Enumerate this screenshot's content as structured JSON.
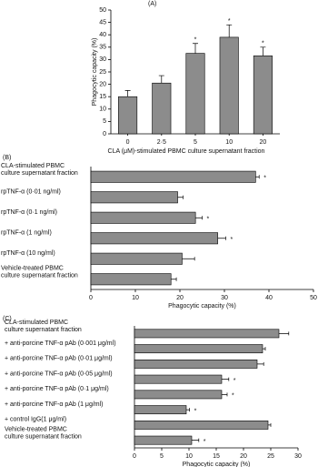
{
  "chart_data": [
    {
      "type": "bar",
      "orientation": "vertical",
      "panel_label": "(A)",
      "y_label": "Phagocytic capacity (%)",
      "x_label": "CLA (μM)-stimulated PBMC culture supernatant fraction",
      "categories": [
        "0",
        "2·5",
        "5",
        "10",
        "20"
      ],
      "series": [
        {
          "color": "#8c8c8c",
          "values": [
            15,
            20.5,
            32.5,
            39,
            31.5
          ],
          "errors": [
            2.5,
            3,
            4,
            5,
            3.5
          ]
        }
      ],
      "significant": [
        false,
        false,
        true,
        true,
        true
      ],
      "significance_label": "*",
      "ylim": [
        0,
        50
      ],
      "yticks": [
        0,
        5,
        10,
        15,
        20,
        25,
        30,
        35,
        40,
        45,
        50
      ]
    },
    {
      "type": "bar",
      "orientation": "horizontal",
      "panel_label": "(B)",
      "x_label": "Phagocytic capacity (%)",
      "categories": [
        [
          "CLA-stimulated PBMC",
          "culture supernatant fraction"
        ],
        "rpTNF-α (0·01 ng/ml)",
        "rpTNF-α (0·1 ng/ml)",
        "rpTNF-α (1 ng/ml)",
        "rpTNF-α (10 ng/ml)",
        [
          "Vehicle-treated PBMC",
          "culture supernatant fraction"
        ]
      ],
      "series": [
        {
          "color": "#8c8c8c",
          "values": [
            37,
            19.5,
            23.5,
            28.5,
            20.5,
            18
          ],
          "errors": [
            0.8,
            1.2,
            1.5,
            1.8,
            2.8,
            1.2
          ]
        }
      ],
      "significant": [
        true,
        false,
        true,
        true,
        false,
        false
      ],
      "significance_label": "*",
      "xlim": [
        0,
        50
      ],
      "xticks": [
        0,
        10,
        20,
        30,
        40,
        50
      ]
    },
    {
      "type": "bar",
      "orientation": "horizontal",
      "panel_label": "(C)",
      "x_label": "Phagocytic capacity (%)",
      "categories": [
        [
          "CLA-stimulated PBMC",
          "culture supernatant fraction"
        ],
        "+ anti-porcine TNF-α pAb (0·001 μg/ml)",
        "+ anti-porcine TNF-α pAb (0·01 μg/ml)",
        "+ anti-porcine TNF-α pAb (0·05 μg/ml)",
        "+ anti-porcine TNF-α pAb (0·1 μg/ml)",
        "+ anti-porcine TNF-α pAb (1 μg/ml)",
        "+ control IgG(1 μg/ml)",
        [
          "Vehicle-treated PBMC",
          "culture supernatant fraction"
        ]
      ],
      "series": [
        {
          "color": "#8c8c8c",
          "values": [
            26.5,
            23.5,
            22.5,
            16,
            16,
            9.5,
            24.5,
            10.5
          ],
          "errors": [
            1.8,
            0.5,
            1.2,
            1.3,
            1,
            0.6,
            0.5,
            1.3
          ]
        }
      ],
      "significant": [
        false,
        false,
        false,
        true,
        true,
        true,
        false,
        true
      ],
      "significance_label": "*",
      "xlim": [
        0,
        30
      ],
      "xticks": [
        0,
        5,
        10,
        15,
        20,
        25,
        30
      ]
    }
  ]
}
